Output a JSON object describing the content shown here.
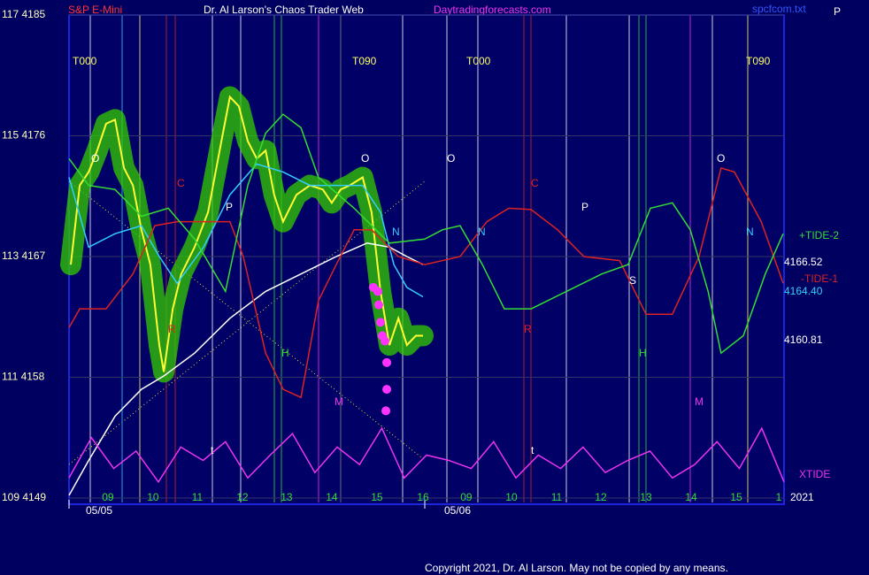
{
  "chart_data": {
    "type": "line",
    "title": "S&P E-Mini",
    "subtitle": "Dr. Al Larson's Chaos Trader Web",
    "website": "Daytradingforecasts.com",
    "file_label": "spcfcom.txt",
    "corner_label": "P",
    "copyright": "Copyright 2021, Dr. Al Larson. May not be copied by any means.",
    "year_label": "2021",
    "date_labels": [
      "05/05",
      "05/06"
    ],
    "right_labels": [
      "4166.52",
      "4164.40",
      "4160.81"
    ],
    "ylim": [
      4149,
      4185
    ],
    "yticks": [
      {
        "value": 4185,
        "label": "117 4185"
      },
      {
        "value": 4176,
        "label": "115 4176"
      },
      {
        "value": 4167,
        "label": "113 4167"
      },
      {
        "value": 4158,
        "label": "111 4158"
      },
      {
        "value": 4149,
        "label": "109 4149"
      }
    ],
    "xlim": [
      0,
      16
    ],
    "xticks": [
      {
        "value": 0.87,
        "label": "09"
      },
      {
        "value": 1.88,
        "label": "10"
      },
      {
        "value": 2.87,
        "label": "11"
      },
      {
        "value": 3.88,
        "label": "12"
      },
      {
        "value": 4.87,
        "label": "13"
      },
      {
        "value": 5.88,
        "label": "14"
      },
      {
        "value": 6.89,
        "label": "15"
      },
      {
        "value": 7.92,
        "label": "16"
      },
      {
        "value": 8.89,
        "label": "09"
      },
      {
        "value": 9.9,
        "label": "10"
      },
      {
        "value": 10.91,
        "label": "11"
      },
      {
        "value": 11.9,
        "label": "12"
      },
      {
        "value": 12.91,
        "label": "13"
      },
      {
        "value": 13.92,
        "label": "14"
      },
      {
        "value": 14.93,
        "label": "15"
      },
      {
        "value": 15.88,
        "label": "1"
      }
    ],
    "grid": true,
    "series": [
      {
        "color": "#ffff33",
        "glow": "#33cc00",
        "x": [
          0.04,
          0.24,
          0.44,
          0.63,
          0.83,
          1.03,
          1.23,
          1.43,
          1.62,
          1.82,
          2.02,
          2.12,
          2.32,
          2.51,
          2.81,
          3.11,
          3.41,
          3.6,
          3.8,
          4.0,
          4.2,
          4.4,
          4.59,
          4.79,
          5.09,
          5.39,
          5.68,
          5.88,
          6.08,
          6.28,
          6.57,
          6.77,
          6.97,
          7.17,
          7.37,
          7.56,
          7.76,
          7.92
        ],
        "values": [
          4166.4,
          4172.3,
          4173.3,
          4174.9,
          4176.9,
          4177.2,
          4173.6,
          4172.3,
          4169.0,
          4166.4,
          4160.4,
          4158.4,
          4163.1,
          4165.7,
          4167.7,
          4170.3,
          4175.6,
          4178.9,
          4178.2,
          4175.6,
          4174.3,
          4174.9,
          4171.6,
          4169.6,
          4171.6,
          4172.3,
          4172.0,
          4171.0,
          4172.0,
          4172.3,
          4172.9,
          4170.3,
          4164.4,
          4160.4,
          4162.4,
          4160.4,
          4161.1,
          4161.1
        ]
      },
      {
        "color": "#33ccff",
        "x": [
          0,
          0.44,
          1.03,
          1.62,
          2.02,
          2.42,
          3.01,
          3.6,
          4.2,
          4.79,
          5.39,
          5.98,
          6.57,
          6.97,
          7.27,
          7.56,
          7.92
        ],
        "values": [
          4172.9,
          4167.7,
          4168.7,
          4169.3,
          4167.0,
          4165.0,
          4167.7,
          4171.6,
          4173.9,
          4173.3,
          4172.3,
          4172.3,
          4172.3,
          4170.3,
          4166.4,
          4164.7,
          4164.0
        ]
      },
      {
        "color": "#ffffff",
        "x": [
          0,
          0.44,
          1.03,
          1.62,
          2.12,
          2.81,
          3.6,
          4.4,
          5.19,
          5.98,
          6.67,
          7.17,
          7.56,
          7.92
        ],
        "values": [
          4149.2,
          4151.8,
          4155.1,
          4157.1,
          4158.1,
          4159.8,
          4162.4,
          4164.4,
          4165.7,
          4167.0,
          4168.0,
          4167.7,
          4167.0,
          4166.4
        ]
      },
      {
        "name": "-TIDE-1",
        "color": "#dd2222",
        "x": [
          0,
          0.24,
          0.83,
          1.43,
          1.92,
          2.42,
          3.01,
          3.6,
          3.9,
          4.4,
          4.79,
          5.19,
          5.58,
          5.98,
          6.38,
          6.77,
          7.37,
          7.96,
          8.75,
          9.35,
          9.84,
          10.34,
          10.93,
          11.52,
          12.32,
          12.91,
          13.5,
          14.1,
          14.59,
          14.89,
          15.49,
          15.98
        ],
        "values": [
          4161.7,
          4163.1,
          4163.1,
          4165.7,
          4169.3,
          4169.6,
          4169.6,
          4169.6,
          4167.0,
          4159.8,
          4157.1,
          4156.5,
          4163.7,
          4166.4,
          4169.0,
          4169.0,
          4167.0,
          4166.4,
          4167.0,
          4169.6,
          4170.6,
          4170.5,
          4169.0,
          4167.0,
          4166.7,
          4162.7,
          4162.7,
          4167.0,
          4173.6,
          4173.3,
          4169.6,
          4165.0
        ]
      },
      {
        "name": "+TIDE-2",
        "color": "#33dd33",
        "x": [
          0,
          0.44,
          1.03,
          1.62,
          2.22,
          2.81,
          3.5,
          4.0,
          4.4,
          4.79,
          5.19,
          5.58,
          6.38,
          7.17,
          7.96,
          8.36,
          8.75,
          9.25,
          9.74,
          10.34,
          11.13,
          11.92,
          12.51,
          13.01,
          13.5,
          13.9,
          14.3,
          14.59,
          15.09,
          15.58,
          15.98
        ],
        "values": [
          4174.3,
          4172.3,
          4172.0,
          4170.0,
          4170.6,
          4168.3,
          4164.4,
          4172.3,
          4176.2,
          4177.6,
          4176.6,
          4172.9,
          4170.6,
          4168.0,
          4168.3,
          4169.0,
          4169.3,
          4166.4,
          4163.1,
          4163.1,
          4164.4,
          4165.7,
          4166.4,
          4170.6,
          4171.0,
          4169.0,
          4164.4,
          4159.8,
          4161.1,
          4165.7,
          4168.7
        ]
      },
      {
        "name": "XTIDE",
        "color": "#ee33ee",
        "x": [
          0,
          0.5,
          1,
          1.5,
          2,
          2.5,
          3,
          3.5,
          4,
          4.5,
          5,
          5.5,
          6,
          6.5,
          7,
          7.5,
          8,
          8.5,
          9,
          9.5,
          10,
          10.5,
          11,
          11.5,
          12,
          12.5,
          13,
          13.5,
          14,
          14.5,
          15,
          15.5,
          16
        ],
        "values": [
          4150.5,
          4153.5,
          4151.2,
          4152.5,
          4150.2,
          4152.8,
          4151.8,
          4153.2,
          4150.5,
          4152.2,
          4153.8,
          4150.9,
          4152.8,
          4151.5,
          4154.2,
          4150.5,
          4152.2,
          4151.8,
          4151.2,
          4153.2,
          4150.5,
          4152.2,
          4151.2,
          4152.8,
          4150.9,
          4151.8,
          4152.5,
          4150.5,
          4151.5,
          4153.2,
          4151.2,
          4154.2,
          4150.2
        ]
      },
      {
        "color": "#ff33ff",
        "marker": "dot",
        "x": [
          6.81,
          6.91,
          6.93,
          6.97,
          7.01,
          7.07,
          7.11,
          7.11,
          7.09
        ],
        "values": [
          4164.7,
          4164.4,
          4163.4,
          4162.1,
          4161.1,
          4160.7,
          4159.1,
          4157.1,
          4155.5
        ]
      }
    ],
    "annotations": [
      {
        "text": "T000",
        "color": "#ffff66"
      },
      {
        "text": "T090",
        "color": "#ffff66"
      },
      {
        "text": "T000",
        "color": "#ffff66"
      },
      {
        "text": "T090",
        "color": "#ffff66"
      },
      {
        "text": "O",
        "color": "#ffffff"
      },
      {
        "text": "C",
        "color": "#dd2222"
      },
      {
        "text": "P",
        "color": "#ffffff"
      },
      {
        "text": "N",
        "color": "#33ccff"
      },
      {
        "text": "O",
        "color": "#ffffff"
      },
      {
        "text": "H",
        "color": "#33dd33"
      },
      {
        "text": "M",
        "color": "#ee33ee"
      },
      {
        "text": "R",
        "color": "#dd2222"
      },
      {
        "text": "t",
        "color": "#ffffff"
      },
      {
        "text": "O",
        "color": "#ffffff"
      },
      {
        "text": "C",
        "color": "#dd2222"
      },
      {
        "text": "P",
        "color": "#ffffff"
      },
      {
        "text": "N",
        "color": "#33ccff"
      },
      {
        "text": "R",
        "color": "#dd2222"
      },
      {
        "text": "S",
        "color": "#ffffff"
      },
      {
        "text": "H",
        "color": "#33dd33"
      },
      {
        "text": "M",
        "color": "#ee33ee"
      },
      {
        "text": "t",
        "color": "#ffffff"
      },
      {
        "text": "O",
        "color": "#ffffff"
      },
      {
        "text": "N",
        "color": "#33ccff"
      }
    ]
  }
}
